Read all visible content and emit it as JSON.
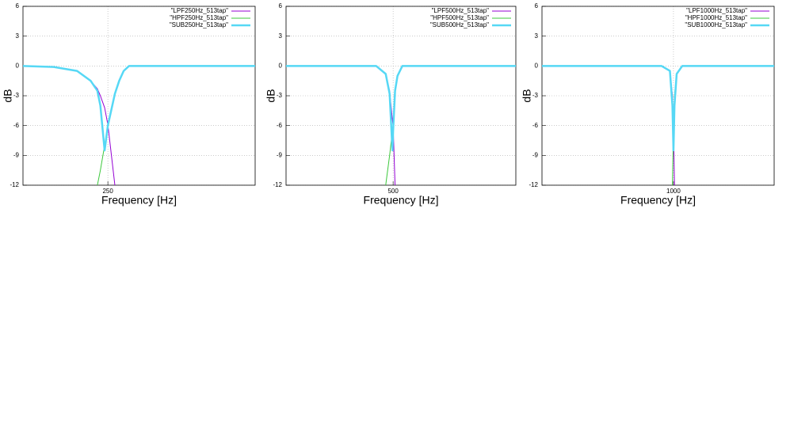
{
  "chart_data": [
    {
      "type": "line",
      "xlabel": "Frequency [Hz]",
      "ylabel": "dB",
      "xlog": true,
      "grid": true,
      "legend": "top right",
      "xlim": [
        20,
        20000
      ],
      "xticks": [
        250
      ],
      "ylim": [
        -12,
        6
      ],
      "yticks": [
        -12,
        -9,
        -6,
        -3,
        0,
        3,
        6
      ],
      "x": [
        20,
        50,
        100,
        150,
        183,
        200,
        227,
        250,
        308,
        350,
        400,
        470,
        1000,
        20000
      ],
      "series": [
        {
          "name": "\"LPF250Hz_513tap\"",
          "color": "#9400d3",
          "line_width": 1,
          "values": [
            0,
            -0.1,
            -0.5,
            -1.5,
            -2.3,
            -3,
            -4.2,
            -5.9,
            -12,
            null,
            null,
            null,
            null,
            null
          ]
        },
        {
          "name": "\"HPF250Hz_513tap\"",
          "color": "#3cc83c",
          "line_width": 1,
          "values": [
            null,
            null,
            null,
            null,
            -12,
            -10.5,
            -8,
            -6,
            -2.8,
            -1.5,
            -0.5,
            0,
            0,
            0
          ]
        },
        {
          "name": "\"SUB250Hz_513tap\"",
          "color": "#56d8f5",
          "line_width": 2.5,
          "values": [
            0,
            -0.1,
            -0.5,
            -1.5,
            -2.5,
            -4,
            -8.5,
            -6,
            -2.8,
            -1.5,
            -0.5,
            0,
            0,
            0
          ]
        }
      ]
    },
    {
      "type": "line",
      "xlabel": "Frequency [Hz]",
      "ylabel": "dB",
      "xlog": true,
      "grid": true,
      "legend": "top right",
      "xlim": [
        20,
        20000
      ],
      "xticks": [
        500
      ],
      "ylim": [
        -12,
        6
      ],
      "yticks": [
        -12,
        -9,
        -6,
        -3,
        0,
        3,
        6
      ],
      "x": [
        20,
        300,
        400,
        450,
        490,
        500,
        530,
        570,
        660,
        20000
      ],
      "series": [
        {
          "name": "\"LPF500Hz_513tap\"",
          "color": "#9400d3",
          "line_width": 1,
          "values": [
            0,
            0,
            -0.8,
            -2.5,
            -5.5,
            -6,
            -12,
            null,
            null,
            null
          ]
        },
        {
          "name": "\"HPF500Hz_513tap\"",
          "color": "#3cc83c",
          "line_width": 1,
          "values": [
            null,
            null,
            -12,
            -9,
            -6.5,
            -6,
            -2.5,
            -1,
            0,
            0
          ]
        },
        {
          "name": "\"SUB500Hz_513tap\"",
          "color": "#56d8f5",
          "line_width": 2.5,
          "values": [
            0,
            0,
            -0.8,
            -2.8,
            -8.5,
            -6.5,
            -2.5,
            -1,
            0,
            0
          ]
        }
      ]
    },
    {
      "type": "line",
      "xlabel": "Frequency [Hz]",
      "ylabel": "dB",
      "xlog": true,
      "grid": true,
      "legend": "top right",
      "xlim": [
        20,
        20000
      ],
      "xticks": [
        1000
      ],
      "ylim": [
        -12,
        6
      ],
      "yticks": [
        -12,
        -9,
        -6,
        -3,
        0,
        3,
        6
      ],
      "x": [
        20,
        700,
        900,
        970,
        1000,
        1030,
        1100,
        1300,
        20000
      ],
      "series": [
        {
          "name": "\"LPF1000Hz_513tap\"",
          "color": "#9400d3",
          "line_width": 1,
          "values": [
            0,
            0,
            -0.5,
            -3,
            -6,
            -12,
            null,
            null,
            null
          ]
        },
        {
          "name": "\"HPF1000Hz_513tap\"",
          "color": "#3cc83c",
          "line_width": 1,
          "values": [
            null,
            null,
            null,
            -12,
            -6,
            -3,
            -0.8,
            0,
            0
          ]
        },
        {
          "name": "\"SUB1000Hz_513tap\"",
          "color": "#56d8f5",
          "line_width": 2.5,
          "values": [
            0,
            0,
            -0.5,
            -4,
            -8.5,
            -4,
            -0.8,
            0,
            0
          ]
        }
      ]
    }
  ]
}
